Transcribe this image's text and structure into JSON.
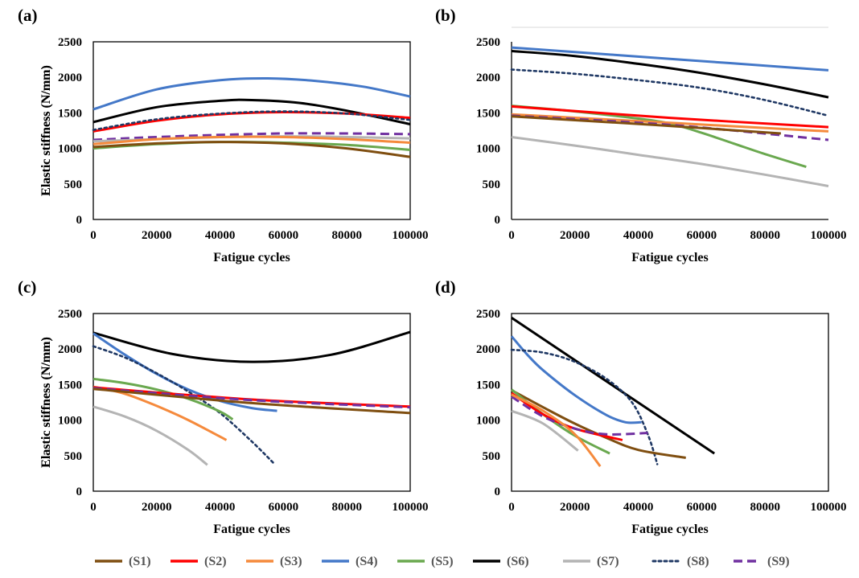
{
  "legend": [
    {
      "id": "S1",
      "label": "(S1)",
      "color": "#7f4e10",
      "dash": "solid"
    },
    {
      "id": "S2",
      "label": "(S2)",
      "color": "#ff0000",
      "dash": "solid"
    },
    {
      "id": "S3",
      "label": "(S3)",
      "color": "#f58a3c",
      "dash": "solid"
    },
    {
      "id": "S4",
      "label": "(S4)",
      "color": "#4478c8",
      "dash": "solid"
    },
    {
      "id": "S5",
      "label": "(S5)",
      "color": "#6aa84f",
      "dash": "solid"
    },
    {
      "id": "S6",
      "label": "(S6)",
      "color": "#000000",
      "dash": "solid"
    },
    {
      "id": "S7",
      "label": "(S7)",
      "color": "#b4b4b4",
      "dash": "solid"
    },
    {
      "id": "S8",
      "label": "(S8)",
      "color": "#1f3864",
      "dash": "dot"
    },
    {
      "id": "S9",
      "label": "(S9)",
      "color": "#7030a0",
      "dash": "dash"
    }
  ],
  "chart_data": [
    {
      "type": "line",
      "panel_label": "(a)",
      "xlabel": "Fatigue cycles",
      "ylabel": "Elastic stiffness (N/mm)",
      "xlim": [
        0,
        100000
      ],
      "ylim": [
        0,
        2500
      ],
      "xticks": [
        0,
        20000,
        40000,
        60000,
        80000,
        100000
      ],
      "yticks": [
        0,
        500,
        1000,
        1500,
        2000,
        2500
      ],
      "frame": "full",
      "grid": false,
      "series": [
        {
          "name": "(S4)",
          "x": [
            0,
            20000,
            40000,
            55000,
            70000,
            85000,
            100000
          ],
          "y": [
            1550,
            1830,
            1960,
            1985,
            1950,
            1870,
            1730
          ]
        },
        {
          "name": "(S6)",
          "x": [
            0,
            20000,
            40000,
            50000,
            65000,
            80000,
            100000
          ],
          "y": [
            1370,
            1580,
            1670,
            1680,
            1640,
            1530,
            1340
          ]
        },
        {
          "name": "(S2)",
          "x": [
            0,
            20000,
            40000,
            60000,
            80000,
            100000
          ],
          "y": [
            1240,
            1390,
            1480,
            1510,
            1490,
            1430
          ]
        },
        {
          "name": "(S8)",
          "x": [
            0,
            20000,
            40000,
            60000,
            80000,
            100000
          ],
          "y": [
            1260,
            1410,
            1490,
            1520,
            1490,
            1400
          ]
        },
        {
          "name": "(S9)",
          "x": [
            0,
            20000,
            40000,
            60000,
            80000,
            100000
          ],
          "y": [
            1120,
            1160,
            1190,
            1210,
            1210,
            1200
          ]
        },
        {
          "name": "(S7)",
          "x": [
            0,
            20000,
            40000,
            60000,
            80000,
            100000
          ],
          "y": [
            1100,
            1130,
            1160,
            1170,
            1160,
            1140
          ]
        },
        {
          "name": "(S3)",
          "x": [
            0,
            20000,
            40000,
            60000,
            80000,
            100000
          ],
          "y": [
            1060,
            1130,
            1160,
            1160,
            1130,
            1080
          ]
        },
        {
          "name": "(S5)",
          "x": [
            0,
            20000,
            40000,
            60000,
            80000,
            100000
          ],
          "y": [
            1000,
            1060,
            1090,
            1080,
            1050,
            980
          ]
        },
        {
          "name": "(S1)",
          "x": [
            0,
            20000,
            40000,
            60000,
            80000,
            100000
          ],
          "y": [
            1020,
            1070,
            1090,
            1070,
            1000,
            880
          ]
        }
      ]
    },
    {
      "type": "line",
      "panel_label": "(b)",
      "xlabel": "Fatigue cycles",
      "ylabel": "Elastic stiffness (N/mm)",
      "xlim": [
        0,
        100000
      ],
      "ylim": [
        0,
        2500
      ],
      "xticks": [
        0,
        20000,
        40000,
        60000,
        80000,
        100000
      ],
      "yticks": [
        0,
        500,
        1000,
        1500,
        2000,
        2500
      ],
      "frame": "axes",
      "grid": false,
      "series": [
        {
          "name": "(S4)",
          "x": [
            0,
            50000,
            100000
          ],
          "y": [
            2420,
            2260,
            2100
          ]
        },
        {
          "name": "(S6)",
          "x": [
            0,
            20000,
            40000,
            60000,
            80000,
            100000
          ],
          "y": [
            2370,
            2300,
            2190,
            2060,
            1900,
            1720
          ]
        },
        {
          "name": "(S8)",
          "x": [
            0,
            20000,
            40000,
            60000,
            80000,
            100000
          ],
          "y": [
            2110,
            2050,
            1960,
            1850,
            1680,
            1460
          ]
        },
        {
          "name": "(S5)",
          "x": [
            0,
            20000,
            40000,
            50000,
            60000,
            70000,
            80000,
            93000
          ],
          "y": [
            1600,
            1520,
            1420,
            1350,
            1220,
            1070,
            920,
            740
          ]
        },
        {
          "name": "(S2)",
          "x": [
            0,
            50000,
            100000
          ],
          "y": [
            1590,
            1430,
            1300
          ]
        },
        {
          "name": "(S3)",
          "x": [
            0,
            50000,
            100000
          ],
          "y": [
            1480,
            1360,
            1240
          ]
        },
        {
          "name": "(S9)",
          "x": [
            0,
            50000,
            100000
          ],
          "y": [
            1460,
            1330,
            1120
          ]
        },
        {
          "name": "(S1)",
          "x": [
            0,
            45000,
            85000
          ],
          "y": [
            1450,
            1330,
            1210
          ]
        },
        {
          "name": "(S7)",
          "x": [
            0,
            20000,
            40000,
            60000,
            80000,
            100000
          ],
          "y": [
            1160,
            1040,
            910,
            780,
            630,
            470
          ]
        }
      ]
    },
    {
      "type": "line",
      "panel_label": "(c)",
      "xlabel": "Fatigue cycles",
      "ylabel": "Elastic stiffness (N/mm)",
      "xlim": [
        0,
        100000
      ],
      "ylim": [
        0,
        2500
      ],
      "xticks": [
        0,
        20000,
        40000,
        60000,
        80000,
        100000
      ],
      "yticks": [
        0,
        500,
        1000,
        1500,
        2000,
        2500
      ],
      "frame": "full",
      "grid": false,
      "series": [
        {
          "name": "(S6)",
          "x": [
            0,
            25000,
            50000,
            75000,
            100000
          ],
          "y": [
            2230,
            1930,
            1820,
            1920,
            2240
          ]
        },
        {
          "name": "(S4)",
          "x": [
            0,
            10000,
            20000,
            30000,
            40000,
            50000,
            58000
          ],
          "y": [
            2220,
            1920,
            1650,
            1430,
            1270,
            1170,
            1130
          ]
        },
        {
          "name": "(S8)",
          "x": [
            0,
            10000,
            20000,
            30000,
            40000,
            50000,
            57000
          ],
          "y": [
            2040,
            1880,
            1660,
            1400,
            1100,
            700,
            390
          ]
        },
        {
          "name": "(S5)",
          "x": [
            0,
            10000,
            20000,
            30000,
            40000,
            44000
          ],
          "y": [
            1580,
            1520,
            1430,
            1300,
            1120,
            1010
          ]
        },
        {
          "name": "(S3)",
          "x": [
            0,
            10000,
            20000,
            30000,
            42000
          ],
          "y": [
            1470,
            1370,
            1200,
            1000,
            720
          ]
        },
        {
          "name": "(S2)",
          "x": [
            0,
            50000,
            100000
          ],
          "y": [
            1460,
            1290,
            1190
          ]
        },
        {
          "name": "(S9)",
          "x": [
            0,
            50000,
            100000
          ],
          "y": [
            1450,
            1280,
            1180
          ]
        },
        {
          "name": "(S1)",
          "x": [
            0,
            50000,
            100000
          ],
          "y": [
            1440,
            1240,
            1100
          ]
        },
        {
          "name": "(S7)",
          "x": [
            0,
            10000,
            20000,
            30000,
            36000
          ],
          "y": [
            1190,
            1050,
            850,
            580,
            370
          ]
        }
      ]
    },
    {
      "type": "line",
      "panel_label": "(d)",
      "xlabel": "Fatigue cycles",
      "ylabel": "Elastic stiffness (N/mm)",
      "xlim": [
        0,
        100000
      ],
      "ylim": [
        0,
        2500
      ],
      "xticks": [
        0,
        20000,
        40000,
        60000,
        80000,
        100000
      ],
      "yticks": [
        0,
        500,
        1000,
        1500,
        2000,
        2500
      ],
      "frame": "full",
      "grid": false,
      "series": [
        {
          "name": "(S6)",
          "x": [
            0,
            64000
          ],
          "y": [
            2440,
            530
          ]
        },
        {
          "name": "(S4)",
          "x": [
            0,
            5000,
            10000,
            20000,
            30000,
            36000,
            41000
          ],
          "y": [
            2180,
            1920,
            1700,
            1350,
            1070,
            970,
            970
          ]
        },
        {
          "name": "(S8)",
          "x": [
            0,
            10000,
            20000,
            30000,
            38000,
            43000,
            46000
          ],
          "y": [
            1990,
            1950,
            1820,
            1580,
            1250,
            800,
            380
          ]
        },
        {
          "name": "(S1)",
          "x": [
            0,
            10000,
            20000,
            30000,
            40000,
            55000
          ],
          "y": [
            1420,
            1180,
            950,
            750,
            580,
            470
          ]
        },
        {
          "name": "(S5)",
          "x": [
            0,
            10000,
            20000,
            31000
          ],
          "y": [
            1430,
            1080,
            780,
            530
          ]
        },
        {
          "name": "(S2)",
          "x": [
            0,
            10000,
            20000,
            35000
          ],
          "y": [
            1380,
            1080,
            880,
            720
          ]
        },
        {
          "name": "(S9)",
          "x": [
            0,
            10000,
            20000,
            30000,
            43000
          ],
          "y": [
            1330,
            1050,
            880,
            800,
            820
          ]
        },
        {
          "name": "(S3)",
          "x": [
            0,
            10000,
            20000,
            28000
          ],
          "y": [
            1360,
            1130,
            800,
            350
          ]
        },
        {
          "name": "(S7)",
          "x": [
            0,
            10000,
            21000
          ],
          "y": [
            1130,
            950,
            570
          ]
        }
      ]
    }
  ]
}
